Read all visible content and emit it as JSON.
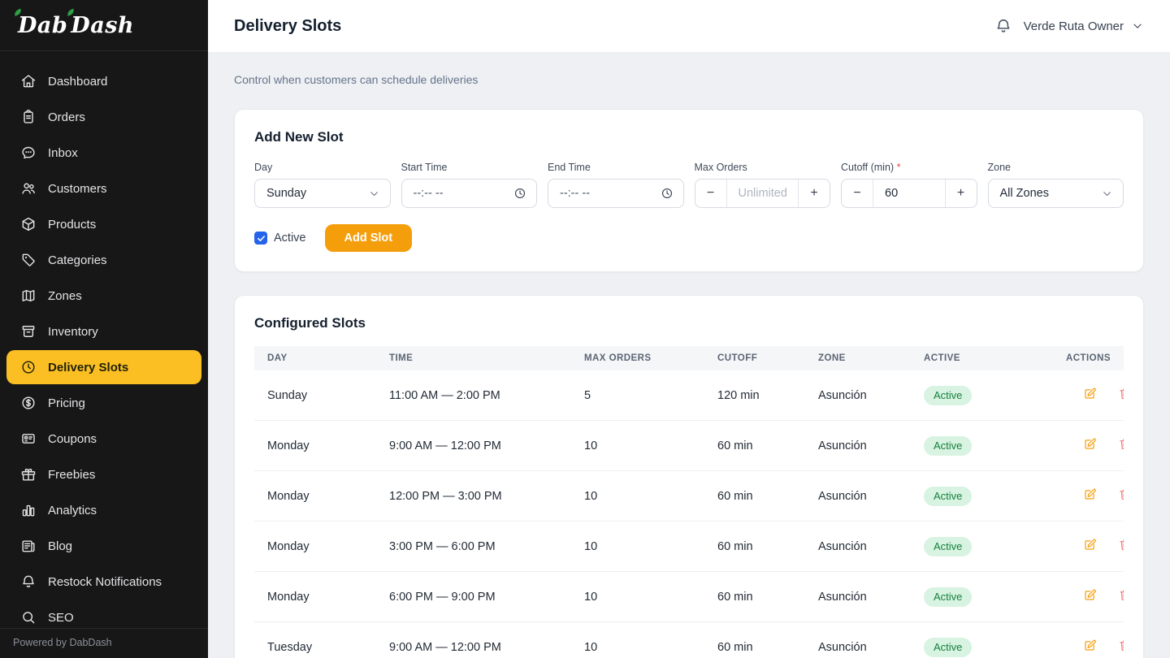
{
  "app": {
    "logo_part1": "Dab",
    "logo_part2": "Dash",
    "footer": "Powered by DabDash"
  },
  "sidebar": {
    "items": [
      {
        "id": "dashboard",
        "label": "Dashboard",
        "icon": "home",
        "active": false
      },
      {
        "id": "orders",
        "label": "Orders",
        "icon": "clipboard",
        "active": false
      },
      {
        "id": "inbox",
        "label": "Inbox",
        "icon": "chat",
        "active": false
      },
      {
        "id": "customers",
        "label": "Customers",
        "icon": "users",
        "active": false
      },
      {
        "id": "products",
        "label": "Products",
        "icon": "cube",
        "active": false
      },
      {
        "id": "categories",
        "label": "Categories",
        "icon": "tag",
        "active": false
      },
      {
        "id": "zones",
        "label": "Zones",
        "icon": "map",
        "active": false
      },
      {
        "id": "inventory",
        "label": "Inventory",
        "icon": "archive",
        "active": false
      },
      {
        "id": "delivery-slots",
        "label": "Delivery Slots",
        "icon": "clock",
        "active": true
      },
      {
        "id": "pricing",
        "label": "Pricing",
        "icon": "dollar",
        "active": false
      },
      {
        "id": "coupons",
        "label": "Coupons",
        "icon": "card",
        "active": false
      },
      {
        "id": "freebies",
        "label": "Freebies",
        "icon": "gift",
        "active": false
      },
      {
        "id": "analytics",
        "label": "Analytics",
        "icon": "chart",
        "active": false
      },
      {
        "id": "blog",
        "label": "Blog",
        "icon": "news",
        "active": false
      },
      {
        "id": "restock-notifications",
        "label": "Restock Notifications",
        "icon": "bell",
        "active": false
      },
      {
        "id": "seo",
        "label": "SEO",
        "icon": "search",
        "active": false
      }
    ]
  },
  "header": {
    "title": "Delivery Slots",
    "user_name": "Verde Ruta Owner"
  },
  "page": {
    "subtitle": "Control when customers can schedule deliveries"
  },
  "form": {
    "title": "Add New Slot",
    "fields": {
      "day": {
        "label": "Day",
        "value": "Sunday"
      },
      "start_time": {
        "label": "Start Time",
        "placeholder": "--:-- --"
      },
      "end_time": {
        "label": "End Time",
        "placeholder": "--:-- --"
      },
      "max_orders": {
        "label": "Max Orders",
        "placeholder": "Unlimited",
        "minus": "−",
        "plus": "+"
      },
      "cutoff": {
        "label": "Cutoff (min)",
        "required_mark": "*",
        "value": "60",
        "minus": "−",
        "plus": "+"
      },
      "zone": {
        "label": "Zone",
        "value": "All Zones"
      }
    },
    "active_checkbox_label": "Active",
    "active_checked": true,
    "submit_label": "Add Slot"
  },
  "table": {
    "title": "Configured Slots",
    "columns": [
      "Day",
      "Time",
      "Max Orders",
      "Cutoff",
      "Zone",
      "Active",
      "Actions"
    ],
    "rows": [
      {
        "day": "Sunday",
        "time": "11:00 AM — 2:00 PM",
        "max_orders": "5",
        "cutoff": "120 min",
        "zone": "Asunción",
        "status": "Active"
      },
      {
        "day": "Monday",
        "time": "9:00 AM — 12:00 PM",
        "max_orders": "10",
        "cutoff": "60 min",
        "zone": "Asunción",
        "status": "Active"
      },
      {
        "day": "Monday",
        "time": "12:00 PM — 3:00 PM",
        "max_orders": "10",
        "cutoff": "60 min",
        "zone": "Asunción",
        "status": "Active"
      },
      {
        "day": "Monday",
        "time": "3:00 PM — 6:00 PM",
        "max_orders": "10",
        "cutoff": "60 min",
        "zone": "Asunción",
        "status": "Active"
      },
      {
        "day": "Monday",
        "time": "6:00 PM — 9:00 PM",
        "max_orders": "10",
        "cutoff": "60 min",
        "zone": "Asunción",
        "status": "Active"
      },
      {
        "day": "Tuesday",
        "time": "9:00 AM — 12:00 PM",
        "max_orders": "10",
        "cutoff": "60 min",
        "zone": "Asunción",
        "status": "Active"
      }
    ]
  },
  "colors": {
    "sidebar_bg": "#171717",
    "sidebar_active": "#fbbf24",
    "accent_button": "#f59e0b",
    "checkbox_blue": "#2563eb",
    "badge_bg": "#d8f3e1",
    "badge_text": "#15803d",
    "edit_icon": "#f59e0b",
    "delete_icon": "#f87171",
    "logo_leaf_green": "#2f9e44"
  }
}
